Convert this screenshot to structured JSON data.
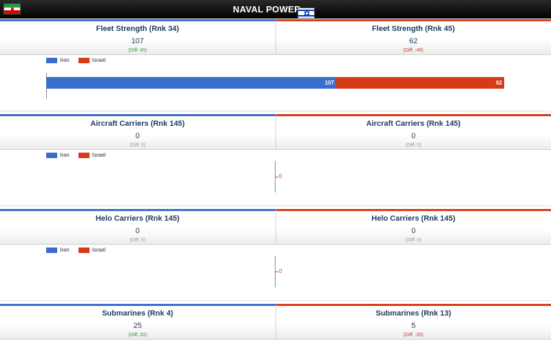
{
  "header": {
    "title": "NAVAL POWER",
    "flag_left": "iran-flag-icon",
    "flag_right": "israel-flag-icon"
  },
  "colors": {
    "iran": "#3a6ccc",
    "israel": "#d63a16"
  },
  "legend": {
    "iran": "Iran",
    "israel": "Israel"
  },
  "sections": [
    {
      "left": {
        "title": "Fleet Strength (Rnk 34)",
        "value": "107",
        "diff": "(Diff: 45)"
      },
      "right": {
        "title": "Fleet Strength (Rnk 45)",
        "value": "62",
        "diff": "(Diff: -45)"
      },
      "chart": {
        "iran_label": "107",
        "israel_label": "62"
      }
    },
    {
      "left": {
        "title": "Aircraft Carriers (Rnk 145)",
        "value": "0",
        "diff": "(Diff: 0)"
      },
      "right": {
        "title": "Aircraft Carriers (Rnk 145)",
        "value": "0",
        "diff": "(Diff: 0)"
      },
      "chart": {
        "zero_label": "0"
      }
    },
    {
      "left": {
        "title": "Helo Carriers (Rnk 145)",
        "value": "0",
        "diff": "(Diff: 0)"
      },
      "right": {
        "title": "Helo Carriers (Rnk 145)",
        "value": "0",
        "diff": "(Diff: 0)"
      },
      "chart": {
        "zero_label": "0"
      }
    },
    {
      "left": {
        "title": "Submarines (Rnk 4)",
        "value": "25",
        "diff": "(Diff: 20)"
      },
      "right": {
        "title": "Submarines (Rnk 13)",
        "value": "5",
        "diff": "(Diff: -20)"
      }
    }
  ],
  "chart_data": [
    {
      "type": "bar",
      "categories": [
        "Iran",
        "Israel"
      ],
      "values": [
        107,
        62
      ],
      "stacked": true,
      "orientation": "horizontal"
    },
    {
      "type": "bar",
      "categories": [
        "Iran",
        "Israel"
      ],
      "values": [
        0,
        0
      ],
      "stacked": true,
      "orientation": "horizontal"
    },
    {
      "type": "bar",
      "categories": [
        "Iran",
        "Israel"
      ],
      "values": [
        0,
        0
      ],
      "stacked": true,
      "orientation": "horizontal"
    }
  ]
}
